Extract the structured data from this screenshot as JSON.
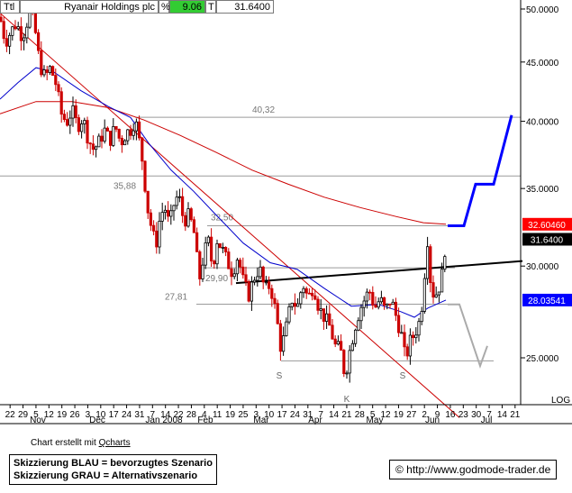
{
  "header": {
    "ttl": "Ttl",
    "name": "Ryanair Holdings plc",
    "pct_symbol": "%",
    "pct_value": "9.06",
    "t_symbol": "T",
    "last_value": "31.6400"
  },
  "chart_data": {
    "type": "candlestick",
    "y_axis": {
      "ticks": [
        "50.0000",
        "45.0000",
        "40.0000",
        "35.0000",
        "30.0000",
        "25.0000"
      ],
      "tick_values": [
        50,
        45,
        40,
        35,
        30,
        25
      ],
      "ylim": [
        21.6,
        50.5
      ],
      "scale_label": "LOG"
    },
    "x_axis": {
      "day_labels": [
        "22",
        "29",
        "5",
        "12",
        "19",
        "26",
        "3",
        "10",
        "17",
        "24",
        "31",
        "7",
        "14",
        "22",
        "28",
        "4",
        "11",
        "19",
        "25",
        "3",
        "10",
        "17",
        "24",
        "31",
        "7",
        "14",
        "21",
        "28",
        "5",
        "12",
        "19",
        "27",
        "2",
        "9",
        "16",
        "23",
        "30",
        "7",
        "14",
        "21"
      ],
      "month_labels": [
        "Nov",
        "Dec",
        "Jan 2008",
        "Feb",
        "Mar",
        "Apr",
        "May",
        "Jun",
        "Jul"
      ]
    },
    "price_path": [
      [
        0,
        49.2
      ],
      [
        6,
        46.8
      ],
      [
        12,
        47.8
      ],
      [
        18,
        48.6
      ],
      [
        25,
        47.3
      ],
      [
        33,
        49.6
      ],
      [
        38,
        48.5
      ],
      [
        44,
        44.8
      ],
      [
        50,
        43.6
      ],
      [
        56,
        44.5
      ],
      [
        62,
        43.1
      ],
      [
        68,
        40.6
      ],
      [
        74,
        39.9
      ],
      [
        80,
        40.9
      ],
      [
        86,
        39.6
      ],
      [
        92,
        40.3
      ],
      [
        98,
        38.6
      ],
      [
        104,
        37.8
      ],
      [
        110,
        38.4
      ],
      [
        116,
        39.3
      ],
      [
        122,
        38.5
      ],
      [
        128,
        39.6
      ],
      [
        134,
        38.3
      ],
      [
        140,
        39.1
      ],
      [
        146,
        39.4
      ],
      [
        150,
        40.2
      ],
      [
        155,
        38.3
      ],
      [
        159,
        36.6
      ],
      [
        163,
        33.9
      ],
      [
        168,
        32.4
      ],
      [
        173,
        31.2
      ],
      [
        178,
        33.2
      ],
      [
        183,
        33.7
      ],
      [
        188,
        32.5
      ],
      [
        193,
        33.9
      ],
      [
        198,
        34.6
      ],
      [
        204,
        32.8
      ],
      [
        210,
        33.2
      ],
      [
        216,
        31.9
      ],
      [
        221,
        29.1
      ],
      [
        226,
        30.6
      ],
      [
        231,
        31.6
      ],
      [
        236,
        29.9
      ],
      [
        241,
        31.6
      ],
      [
        246,
        31.1
      ],
      [
        252,
        30.3
      ],
      [
        258,
        29.6
      ],
      [
        264,
        30.6
      ],
      [
        270,
        29.1
      ],
      [
        276,
        28.3
      ],
      [
        282,
        29.3
      ],
      [
        288,
        29.9
      ],
      [
        294,
        28.6
      ],
      [
        300,
        28.9
      ],
      [
        306,
        27.4
      ],
      [
        312,
        25.4
      ],
      [
        318,
        26.6
      ],
      [
        324,
        28.1
      ],
      [
        330,
        27.6
      ],
      [
        336,
        29.0
      ],
      [
        342,
        28.1
      ],
      [
        348,
        28.9
      ],
      [
        354,
        27.6
      ],
      [
        360,
        27.1
      ],
      [
        366,
        26.6
      ],
      [
        372,
        25.6
      ],
      [
        378,
        25.4
      ],
      [
        383,
        24.1
      ],
      [
        388,
        25.3
      ],
      [
        394,
        26.6
      ],
      [
        400,
        27.6
      ],
      [
        405,
        28.1
      ],
      [
        410,
        28.6
      ],
      [
        416,
        27.6
      ],
      [
        422,
        28.1
      ],
      [
        428,
        27.4
      ],
      [
        434,
        28.1
      ],
      [
        440,
        27.1
      ],
      [
        446,
        26.1
      ],
      [
        450,
        24.9
      ],
      [
        455,
        25.8
      ],
      [
        460,
        26.2
      ],
      [
        465,
        26.8
      ],
      [
        470,
        28.3
      ],
      [
        474,
        32.1
      ],
      [
        478,
        29.1
      ],
      [
        482,
        28.2
      ],
      [
        486,
        28.6
      ],
      [
        490,
        29.2
      ],
      [
        495,
        31.6
      ]
    ],
    "moving_average_blue": [
      [
        0,
        41.8
      ],
      [
        20,
        43.2
      ],
      [
        40,
        44.5
      ],
      [
        60,
        44.1
      ],
      [
        90,
        42.5
      ],
      [
        120,
        41.2
      ],
      [
        145,
        40.3
      ],
      [
        165,
        38.3
      ],
      [
        190,
        36.3
      ],
      [
        215,
        34.8
      ],
      [
        240,
        33.2
      ],
      [
        270,
        31.4
      ],
      [
        300,
        30.2
      ],
      [
        330,
        29.8
      ],
      [
        360,
        28.7
      ],
      [
        390,
        27.7
      ],
      [
        420,
        27.8
      ],
      [
        445,
        27.4
      ],
      [
        460,
        27.1
      ],
      [
        475,
        27.6
      ],
      [
        495,
        28.04
      ]
    ],
    "moving_average_red": [
      [
        0,
        40.6
      ],
      [
        40,
        41.6
      ],
      [
        80,
        41.6
      ],
      [
        120,
        41.1
      ],
      [
        160,
        40.1
      ],
      [
        200,
        38.9
      ],
      [
        240,
        37.6
      ],
      [
        280,
        36.3
      ],
      [
        320,
        35.3
      ],
      [
        360,
        34.4
      ],
      [
        400,
        33.7
      ],
      [
        440,
        33.1
      ],
      [
        470,
        32.7
      ],
      [
        495,
        32.6
      ]
    ],
    "resistance_downtrend": [
      [
        0,
        49.6
      ],
      [
        510,
        22.2
      ]
    ],
    "support_uptrend_line": [
      [
        38,
        20.4
      ],
      [
        525,
        18.4
      ]
    ],
    "neckline": [
      [
        262,
        29.0
      ],
      [
        580,
        30.3
      ]
    ],
    "horizontal_levels": [
      {
        "value": 40.32,
        "label": "40,32"
      },
      {
        "value": 35.88,
        "label": "35,88"
      },
      {
        "value": 32.5,
        "label": "32,50"
      },
      {
        "value": 29.9,
        "label": "29,90"
      },
      {
        "value": 27.81,
        "label": "27,81"
      },
      {
        "value": 24.85,
        "label": ""
      }
    ],
    "pattern_labels": [
      {
        "text": "S",
        "x": 310,
        "y": 24.0
      },
      {
        "text": "K",
        "x": 385,
        "y": 22.9
      },
      {
        "text": "S",
        "x": 447,
        "y": 24.0
      }
    ],
    "scenario_blue": [
      [
        497,
        32.5
      ],
      [
        515,
        32.5
      ],
      [
        528,
        35.3
      ],
      [
        548,
        35.3
      ],
      [
        568,
        40.5
      ]
    ],
    "scenario_gray": [
      [
        497,
        27.8
      ],
      [
        510,
        27.8
      ],
      [
        533,
        24.6
      ],
      [
        541,
        25.6
      ]
    ],
    "price_tags": [
      {
        "value": "32.60460",
        "y": 32.6,
        "bg": "#ff0000",
        "fg": "#ffffff"
      },
      {
        "value": "31.6400",
        "y": 31.64,
        "bg": "#000000",
        "fg": "#ffffff"
      },
      {
        "value": "28.03541",
        "y": 28.04,
        "bg": "#0000ff",
        "fg": "#ffffff"
      }
    ],
    "colors": {
      "up": "#000000",
      "down": "#cc0000",
      "ma_blue": "#0000cc",
      "ma_red": "#cc0000",
      "scenario_blue": "#0000ff",
      "scenario_gray": "#aaaaaa",
      "level": "#9a9a9a",
      "pct_bg": "#33cc33"
    }
  },
  "footer": {
    "credit_prefix": "Chart erstellt mit",
    "credit_link": "Qcharts",
    "legend_blue": "Skizzierung BLAU = bevorzugtes Szenario",
    "legend_gray": "Skizzierung GRAU = Alternativszenario",
    "url": "© http://www.godmode-trader.de"
  }
}
